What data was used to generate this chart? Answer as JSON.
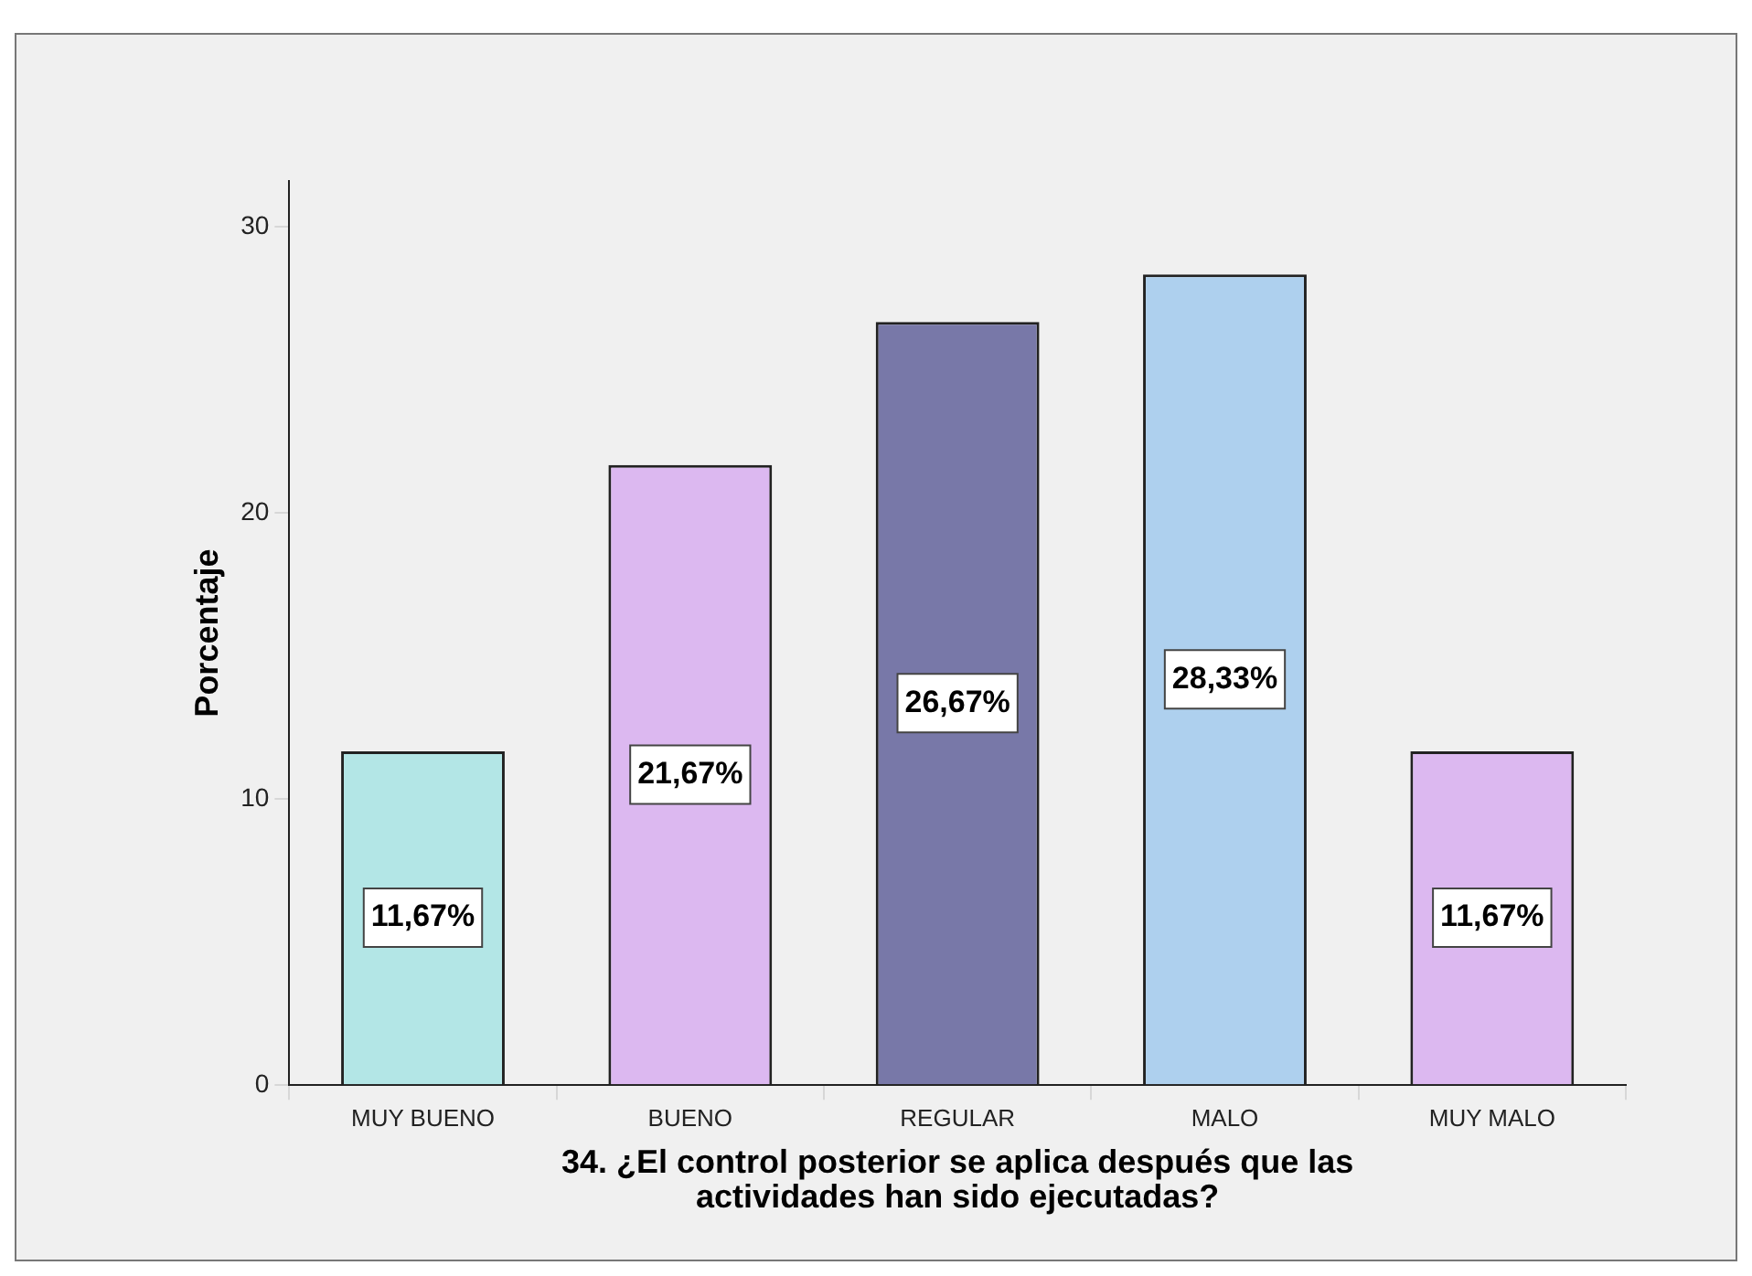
{
  "chart_data": {
    "type": "bar",
    "xlabel": "34. ¿El control posterior se aplica después que las actividades han sido ejecutadas?",
    "ylabel": "Porcentaje",
    "categories": [
      "MUY BUENO",
      "BUENO",
      "REGULAR",
      "MALO",
      "MUY MALO"
    ],
    "values": [
      11.67,
      21.67,
      26.67,
      28.33,
      11.67
    ],
    "colors": [
      "#b3e6e6",
      "#dcb8f0",
      "#7878a8",
      "#aed0ee",
      "#dcb8f0"
    ],
    "value_labels": [
      "11,67%",
      "21,67%",
      "26,67%",
      "28,33%",
      "11,67%"
    ],
    "ylim": [
      0,
      31.6
    ],
    "yticks": [
      0,
      10,
      20,
      30
    ],
    "grid": false,
    "legend": false
  }
}
